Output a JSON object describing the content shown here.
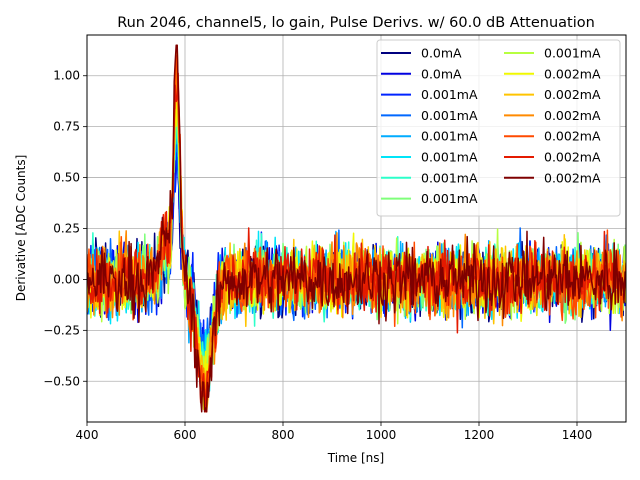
{
  "chart_data": {
    "type": "line",
    "title": "Run 2046, channel5, lo gain, Pulse Derivs. w/ 60.0 dB Attenuation",
    "xlabel": "Time [ns]",
    "ylabel": "Derivative [ADC Counts]",
    "xlim": [
      400,
      1500
    ],
    "ylim": [
      -0.7,
      1.2
    ],
    "xticks": [
      400,
      600,
      800,
      1000,
      1200,
      1400
    ],
    "xtick_labels": [
      "400",
      "600",
      "800",
      "1000",
      "1200",
      "1400"
    ],
    "yticks": [
      -0.5,
      -0.25,
      0.0,
      0.25,
      0.5,
      0.75,
      1.0
    ],
    "ytick_labels": [
      "−0.50",
      "−0.25",
      "0.00",
      "0.25",
      "0.50",
      "0.75",
      "1.00"
    ],
    "grid": true,
    "legend_position": "top-right",
    "legend_columns": 2,
    "pulse": {
      "peak_time": 583,
      "peak_value": 1.1,
      "trough_time": 640,
      "trough_value": -0.6,
      "noise_amplitude": 0.3
    },
    "series": [
      {
        "name": "0.0mA",
        "color": "#00007f"
      },
      {
        "name": "0.0mA",
        "color": "#0000e0"
      },
      {
        "name": "0.001mA",
        "color": "#0024ff"
      },
      {
        "name": "0.001mA",
        "color": "#0068ff"
      },
      {
        "name": "0.001mA",
        "color": "#00acff"
      },
      {
        "name": "0.001mA",
        "color": "#00e4f8"
      },
      {
        "name": "0.001mA",
        "color": "#2cffca"
      },
      {
        "name": "0.001mA",
        "color": "#7fff7a"
      },
      {
        "name": "0.001mA",
        "color": "#b7ff40"
      },
      {
        "name": "0.002mA",
        "color": "#f0f800"
      },
      {
        "name": "0.002mA",
        "color": "#ffc400"
      },
      {
        "name": "0.002mA",
        "color": "#ff8a00"
      },
      {
        "name": "0.002mA",
        "color": "#ff4a00"
      },
      {
        "name": "0.002mA",
        "color": "#e41a00"
      },
      {
        "name": "0.002mA",
        "color": "#7f0000"
      }
    ]
  }
}
